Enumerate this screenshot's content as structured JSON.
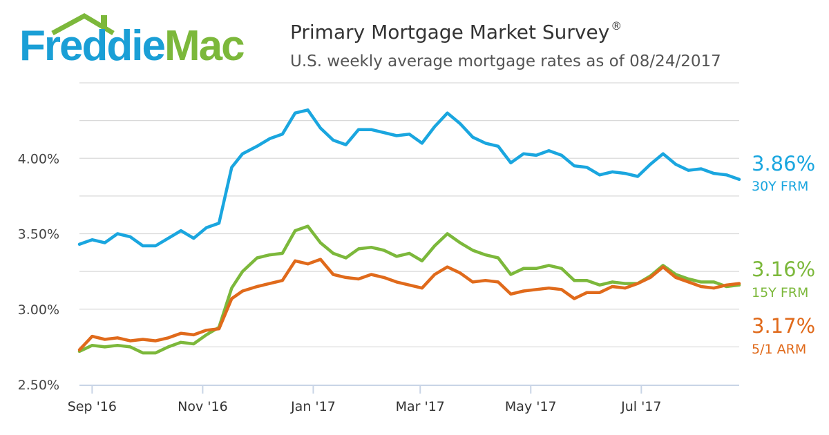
{
  "header": {
    "brand_part1": "Freddie",
    "brand_part2": "Mac",
    "title": "Primary Mortgage Market Survey",
    "title_mark": "®",
    "subtitle": "U.S. weekly average mortgage rates as of 08/24/2017"
  },
  "colors": {
    "brand_blue": "#1a9fd6",
    "brand_green": "#7cb83b",
    "frm30": "#1aa6df",
    "frm15": "#7cb83b",
    "arm51": "#e06a1b",
    "grid": "#d9d9d9",
    "axis": "#c8d4e6"
  },
  "chart_data": {
    "type": "line",
    "title": "Primary Mortgage Market Survey",
    "subtitle": "U.S. weekly average mortgage rates as of 08/24/2017",
    "xlabel": "",
    "ylabel": "",
    "x_ticks": [
      "Sep '16",
      "Nov '16",
      "Jan '17",
      "Mar '17",
      "May '17",
      "Jul '17"
    ],
    "y_ticks": [
      "2.50%",
      "3.00%",
      "3.50%",
      "4.00%"
    ],
    "ylim": [
      2.5,
      4.5
    ],
    "grid": true,
    "x": [
      "2016-08-25",
      "2016-09-01",
      "2016-09-08",
      "2016-09-15",
      "2016-09-22",
      "2016-09-29",
      "2016-10-06",
      "2016-10-13",
      "2016-10-20",
      "2016-10-27",
      "2016-11-03",
      "2016-11-10",
      "2016-11-17",
      "2016-11-23",
      "2016-12-01",
      "2016-12-08",
      "2016-12-15",
      "2016-12-22",
      "2016-12-29",
      "2017-01-05",
      "2017-01-12",
      "2017-01-19",
      "2017-01-26",
      "2017-02-02",
      "2017-02-09",
      "2017-02-16",
      "2017-02-23",
      "2017-03-02",
      "2017-03-09",
      "2017-03-16",
      "2017-03-23",
      "2017-03-30",
      "2017-04-06",
      "2017-04-13",
      "2017-04-20",
      "2017-04-27",
      "2017-05-04",
      "2017-05-11",
      "2017-05-18",
      "2017-05-25",
      "2017-06-01",
      "2017-06-08",
      "2017-06-15",
      "2017-06-22",
      "2017-06-29",
      "2017-07-06",
      "2017-07-13",
      "2017-07-20",
      "2017-07-27",
      "2017-08-03",
      "2017-08-10",
      "2017-08-17",
      "2017-08-24"
    ],
    "series": [
      {
        "name": "30Y FRM",
        "label": "3.86%",
        "color": "#1aa6df",
        "values": [
          3.43,
          3.46,
          3.44,
          3.5,
          3.48,
          3.42,
          3.42,
          3.47,
          3.52,
          3.47,
          3.54,
          3.57,
          3.94,
          4.03,
          4.08,
          4.13,
          4.16,
          4.3,
          4.32,
          4.2,
          4.12,
          4.09,
          4.19,
          4.19,
          4.17,
          4.15,
          4.16,
          4.1,
          4.21,
          4.3,
          4.23,
          4.14,
          4.1,
          4.08,
          3.97,
          4.03,
          4.02,
          4.05,
          4.02,
          3.95,
          3.94,
          3.89,
          3.91,
          3.9,
          3.88,
          3.96,
          4.03,
          3.96,
          3.92,
          3.93,
          3.9,
          3.89,
          3.86
        ]
      },
      {
        "name": "15Y FRM",
        "label": "3.16%",
        "color": "#7cb83b",
        "values": [
          2.72,
          2.76,
          2.75,
          2.76,
          2.75,
          2.71,
          2.71,
          2.75,
          2.78,
          2.77,
          2.83,
          2.88,
          3.14,
          3.25,
          3.34,
          3.36,
          3.37,
          3.52,
          3.55,
          3.44,
          3.37,
          3.34,
          3.4,
          3.41,
          3.39,
          3.35,
          3.37,
          3.32,
          3.42,
          3.5,
          3.44,
          3.39,
          3.36,
          3.34,
          3.23,
          3.27,
          3.27,
          3.29,
          3.27,
          3.19,
          3.19,
          3.16,
          3.18,
          3.17,
          3.17,
          3.22,
          3.29,
          3.23,
          3.2,
          3.18,
          3.18,
          3.15,
          3.16
        ]
      },
      {
        "name": "5/1 ARM",
        "label": "3.17%",
        "color": "#e06a1b",
        "values": [
          2.73,
          2.82,
          2.8,
          2.81,
          2.79,
          2.8,
          2.79,
          2.81,
          2.84,
          2.83,
          2.86,
          2.87,
          3.07,
          3.12,
          3.15,
          3.17,
          3.19,
          3.32,
          3.3,
          3.33,
          3.23,
          3.21,
          3.2,
          3.23,
          3.21,
          3.18,
          3.16,
          3.14,
          3.23,
          3.28,
          3.24,
          3.18,
          3.19,
          3.18,
          3.1,
          3.12,
          3.13,
          3.14,
          3.13,
          3.07,
          3.11,
          3.11,
          3.15,
          3.14,
          3.17,
          3.21,
          3.28,
          3.21,
          3.18,
          3.15,
          3.14,
          3.16,
          3.17
        ]
      }
    ]
  }
}
